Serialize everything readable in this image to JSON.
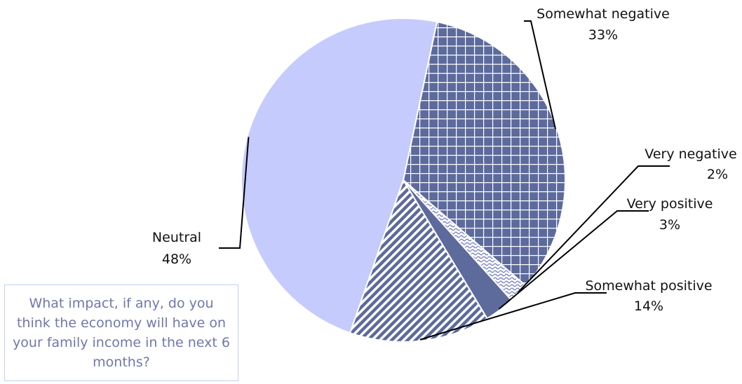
{
  "question": "What impact, if any, do you think the economy will have on your family income in the next 6 months?",
  "chart_data": {
    "type": "pie",
    "title": "",
    "slices": [
      {
        "label": "Somewhat negative",
        "value": 33,
        "value_label": "33%",
        "color": "#5d6a9c",
        "pattern": "grid"
      },
      {
        "label": "Very negative",
        "value": 2,
        "value_label": "2%",
        "color": "#9aa3d6",
        "pattern": "wave"
      },
      {
        "label": "Very positive",
        "value": 3,
        "value_label": "3%",
        "color": "#5d6a9c",
        "pattern": "solid"
      },
      {
        "label": "Somewhat positive",
        "value": 14,
        "value_label": "14%",
        "color": "#5d6a9c",
        "pattern": "diagonal"
      },
      {
        "label": "Neutral",
        "value": 48,
        "value_label": "48%",
        "color": "#c5cbfc",
        "pattern": "solid"
      }
    ],
    "start_angle_deg": 12,
    "direction": "clockwise",
    "legend": "none",
    "labels": "outside-with-leader-lines"
  }
}
